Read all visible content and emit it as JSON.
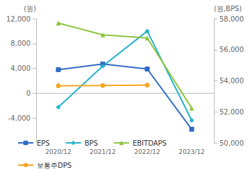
{
  "chart_data": {
    "type": "line",
    "y_label": "(원)",
    "y2_label": "(원,BPS)",
    "categories": [
      "2020/12",
      "2021/12",
      "2022/12",
      "2023/12"
    ],
    "ylim": [
      -8000,
      12000
    ],
    "yticks": [
      {
        "value": -4000,
        "label": "-4,000"
      },
      0,
      {
        "value": 4000,
        "label": "4,000"
      },
      {
        "value": 8000,
        "label": "8,000"
      },
      {
        "value": 12000,
        "label": "12,000"
      }
    ],
    "y2lim": [
      50000,
      58000
    ],
    "y2ticks": [
      {
        "value": 50000,
        "label": "50,000"
      },
      {
        "value": 52000,
        "label": "52,000"
      },
      {
        "value": 54000,
        "label": "54,000"
      },
      {
        "value": 56000,
        "label": "56,000"
      },
      {
        "value": 58000,
        "label": "58,000"
      }
    ],
    "grid": false,
    "legend": "bottom",
    "series": [
      {
        "name": "EPS",
        "color": "#2f6bc4",
        "marker": "square",
        "values": [
          3800,
          4700,
          3900,
          -5800
        ]
      },
      {
        "name": "BPS",
        "color": "#22b3cc",
        "marker": "diamond",
        "axis": "y2",
        "values": [
          52300,
          54950,
          57200,
          51450
        ]
      },
      {
        "name": "EBITDAPS",
        "color": "#8cc63f",
        "marker": "triangle",
        "values": [
          11300,
          9400,
          8900,
          -2400
        ]
      },
      {
        "name": "보통주DPS",
        "color": "#f5a623",
        "marker": "circle",
        "values": [
          1200,
          1250,
          1300,
          null
        ]
      }
    ]
  }
}
